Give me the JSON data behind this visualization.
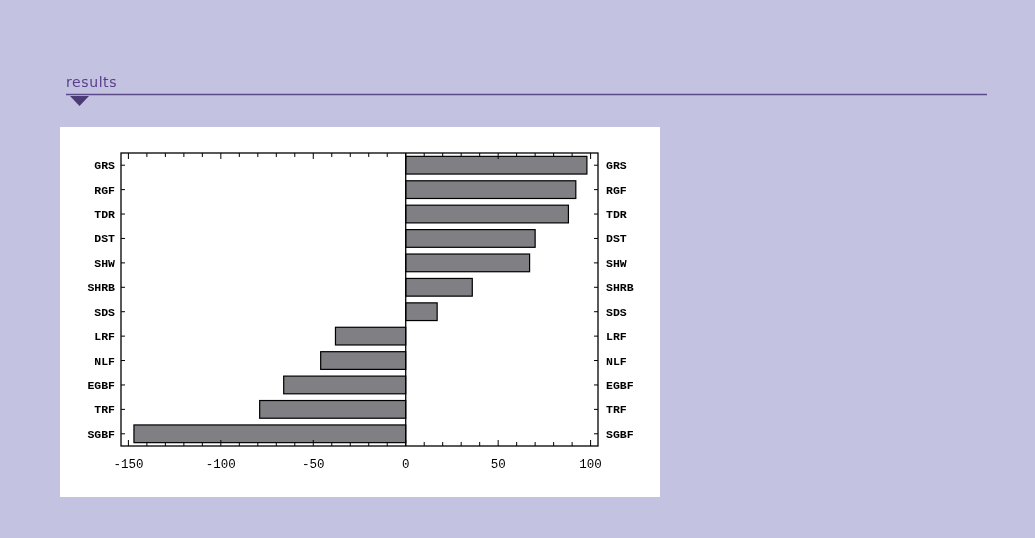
{
  "chart_data": {
    "type": "bar",
    "title": "results",
    "orientation": "horizontal",
    "categories": [
      "GRS",
      "RGF",
      "TDR",
      "DST",
      "SHW",
      "SHRB",
      "SDS",
      "LRF",
      "NLF",
      "EGBF",
      "TRF",
      "SGBF"
    ],
    "y2_categories": [
      "GRS",
      "RGF",
      "TDR",
      "DST",
      "SHW",
      "SHRB",
      "SDS",
      "LRF",
      "NLF",
      "EGBF",
      "TRF",
      "SGBF"
    ],
    "values": [
      98,
      92,
      88,
      70,
      67,
      36,
      17,
      -38,
      -46,
      -66,
      -79,
      -147
    ],
    "color": "#7f7f84",
    "xlim": [
      -154,
      104
    ],
    "xticks": [
      -150,
      {
        "value": -140,
        "label": null
      },
      {
        "value": -130,
        "label": null
      },
      {
        "value": -120,
        "label": null
      },
      {
        "value": -110,
        "label": null
      },
      -100,
      {
        "value": -90,
        "label": null
      },
      {
        "value": -80,
        "label": null
      },
      {
        "value": -70,
        "label": null
      },
      {
        "value": -60,
        "label": null
      },
      -50,
      {
        "value": -40,
        "label": null
      },
      {
        "value": -30,
        "label": null
      },
      {
        "value": -20,
        "label": null
      },
      {
        "value": -10,
        "label": null
      },
      0,
      {
        "value": 10,
        "label": null
      },
      {
        "value": 20,
        "label": null
      },
      {
        "value": 30,
        "label": null
      },
      {
        "value": 40,
        "label": null
      },
      50,
      {
        "value": 60,
        "label": null
      },
      {
        "value": 70,
        "label": null
      },
      {
        "value": 80,
        "label": null
      },
      {
        "value": 90,
        "label": null
      },
      100
    ]
  }
}
